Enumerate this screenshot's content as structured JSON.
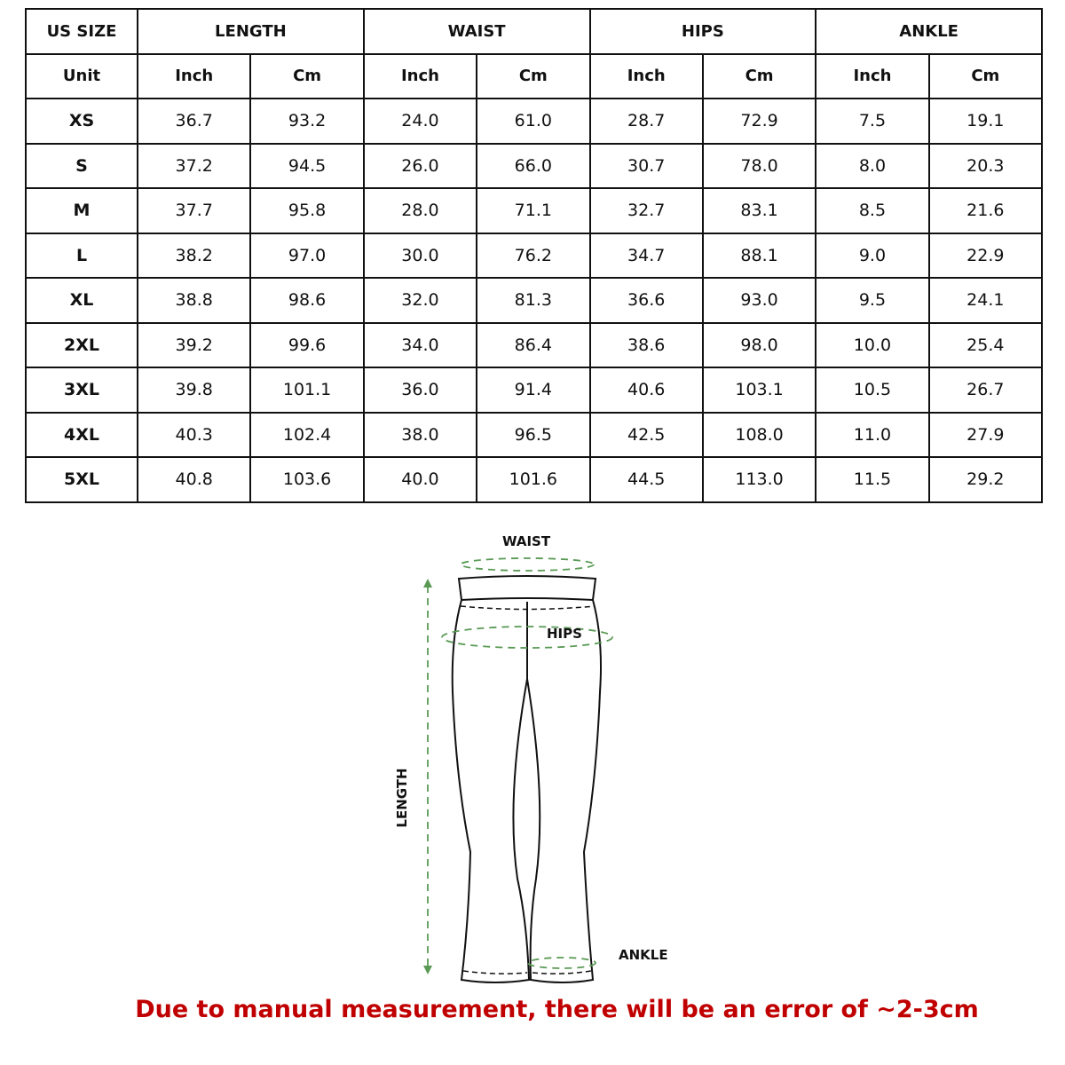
{
  "table": {
    "header_row": [
      "US SIZE",
      "LENGTH",
      "WAIST",
      "HIPS",
      "ANKLE"
    ],
    "unit_row": [
      "Unit",
      "Inch",
      "Cm",
      "Inch",
      "Cm",
      "Inch",
      "Cm",
      "Inch",
      "Cm"
    ],
    "rows": [
      [
        "XS",
        "36.7",
        "93.2",
        "24.0",
        "61.0",
        "28.7",
        "72.9",
        "7.5",
        "19.1"
      ],
      [
        "S",
        "37.2",
        "94.5",
        "26.0",
        "66.0",
        "30.7",
        "78.0",
        "8.0",
        "20.3"
      ],
      [
        "M",
        "37.7",
        "95.8",
        "28.0",
        "71.1",
        "32.7",
        "83.1",
        "8.5",
        "21.6"
      ],
      [
        "L",
        "38.2",
        "97.0",
        "30.0",
        "76.2",
        "34.7",
        "88.1",
        "9.0",
        "22.9"
      ],
      [
        "XL",
        "38.8",
        "98.6",
        "32.0",
        "81.3",
        "36.6",
        "93.0",
        "9.5",
        "24.1"
      ],
      [
        "2XL",
        "39.2",
        "99.6",
        "34.0",
        "86.4",
        "38.6",
        "98.0",
        "10.0",
        "25.4"
      ],
      [
        "3XL",
        "39.8",
        "101.1",
        "36.0",
        "91.4",
        "40.6",
        "103.1",
        "10.5",
        "26.7"
      ],
      [
        "4XL",
        "40.3",
        "102.4",
        "38.0",
        "96.5",
        "42.5",
        "108.0",
        "11.0",
        "27.9"
      ],
      [
        "5XL",
        "40.8",
        "103.6",
        "40.0",
        "101.6",
        "44.5",
        "113.0",
        "11.5",
        "29.2"
      ]
    ]
  },
  "diagram": {
    "waist_label": "WAIST",
    "hips_label": "HIPS",
    "length_label": "LENGTH",
    "ankle_label": "ANKLE",
    "measure_color": "#5a9a55"
  },
  "note": "Due to manual measurement, there will be an error of ~2-3cm",
  "note_color": "#c00000"
}
